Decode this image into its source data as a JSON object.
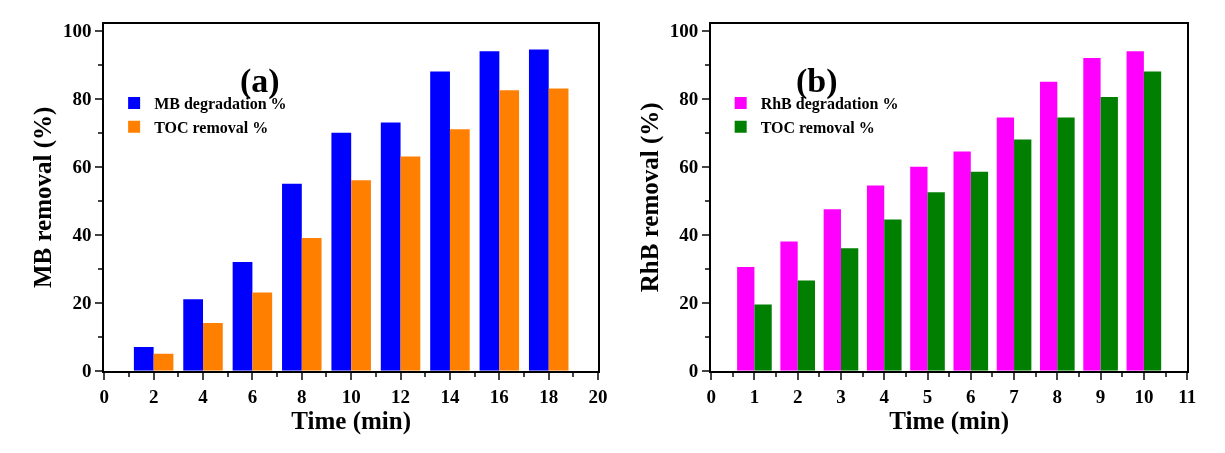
{
  "chart_data": [
    {
      "type": "bar",
      "title": "(a)",
      "xlabel": "Time (min)",
      "ylabel": "MB removal (%)",
      "x": [
        2,
        4,
        6,
        8,
        10,
        12,
        14,
        16,
        18
      ],
      "series": [
        {
          "name": "MB degradation %",
          "color": "#0000ff",
          "values": [
            7,
            21,
            32,
            55,
            70,
            73,
            88,
            94,
            94.5
          ]
        },
        {
          "name": "TOC removal %",
          "color": "#ff8000",
          "values": [
            5,
            14,
            23,
            39,
            56,
            63,
            71,
            82.5,
            83
          ]
        }
      ],
      "xlim": [
        0,
        20
      ],
      "xticks": [
        0,
        2,
        4,
        6,
        8,
        10,
        12,
        14,
        16,
        18,
        20
      ],
      "ylim": [
        0,
        102
      ],
      "yticks": [
        0,
        20,
        40,
        60,
        80,
        100
      ],
      "legend": "top left"
    },
    {
      "type": "bar",
      "title": "(b)",
      "xlabel": "Time (min)",
      "ylabel": "RhB removal (%)",
      "x": [
        1,
        2,
        3,
        4,
        5,
        6,
        7,
        8,
        9,
        10
      ],
      "series": [
        {
          "name": "RhB degradation %",
          "color": "#ff00ff",
          "values": [
            30.5,
            38,
            47.5,
            54.5,
            60,
            64.5,
            74.5,
            85,
            92,
            94
          ]
        },
        {
          "name": "TOC removal %",
          "color": "#007f00",
          "values": [
            19.5,
            26.5,
            36,
            44.5,
            52.5,
            58.5,
            68,
            74.5,
            80.5,
            88
          ]
        }
      ],
      "xlim": [
        0,
        11
      ],
      "xticks": [
        0,
        1,
        2,
        3,
        4,
        5,
        6,
        7,
        8,
        9,
        10,
        11
      ],
      "ylim": [
        0,
        102
      ],
      "yticks": [
        0,
        20,
        40,
        60,
        80,
        100
      ],
      "legend": "top left"
    }
  ]
}
